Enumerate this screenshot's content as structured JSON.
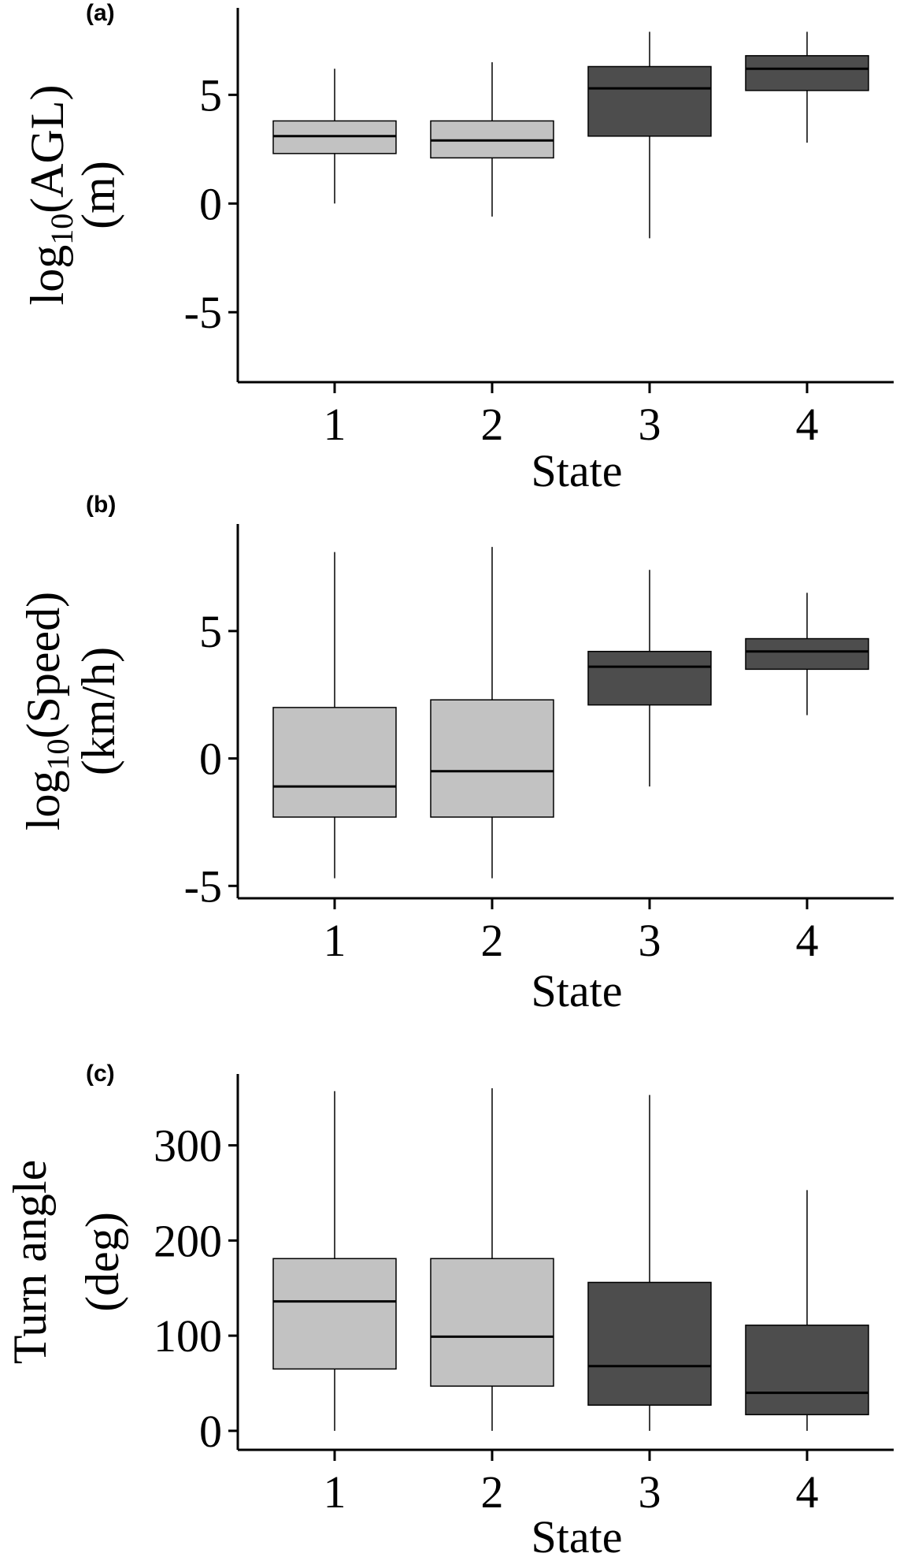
{
  "chart_data": [
    {
      "type": "boxplot",
      "panel_label": "(a)",
      "ylabel": {
        "main": "log",
        "sub": "10",
        "rest": "(AGL)",
        "line2": "(m)"
      },
      "xlabel": "State",
      "categories": [
        "1",
        "2",
        "3",
        "4"
      ],
      "yticks": [
        "5",
        "0",
        "-5"
      ],
      "ytick_values": [
        5,
        0,
        -5
      ],
      "ylim": [
        -8.0,
        9.0
      ],
      "colors": [
        "#c2c2c2",
        "#c2c2c2",
        "#4d4d4d",
        "#4d4d4d"
      ],
      "boxes": [
        {
          "min": 0.0,
          "q1": 2.3,
          "median": 3.1,
          "q3": 3.8,
          "max": 6.2
        },
        {
          "min": -0.6,
          "q1": 2.1,
          "median": 2.9,
          "q3": 3.8,
          "max": 6.5
        },
        {
          "min": -1.6,
          "q1": 3.1,
          "median": 5.3,
          "q3": 6.3,
          "max": 7.9
        },
        {
          "min": 2.8,
          "q1": 5.2,
          "median": 6.2,
          "q3": 6.8,
          "max": 7.9
        }
      ]
    },
    {
      "type": "boxplot",
      "panel_label": "(b)",
      "ylabel": {
        "main": "log",
        "sub": "10",
        "rest": "(Speed)",
        "line2": "(km/h)"
      },
      "xlabel": "State",
      "categories": [
        "1",
        "2",
        "3",
        "4"
      ],
      "yticks": [
        "5",
        "0",
        "-5"
      ],
      "ytick_values": [
        5,
        0,
        -5
      ],
      "ylim": [
        -5.3,
        9.2
      ],
      "colors": [
        "#c2c2c2",
        "#c2c2c2",
        "#4d4d4d",
        "#4d4d4d"
      ],
      "boxes": [
        {
          "min": -4.7,
          "q1": -2.3,
          "median": -1.1,
          "q3": 2.0,
          "max": 8.1
        },
        {
          "min": -4.7,
          "q1": -2.3,
          "median": -0.5,
          "q3": 2.3,
          "max": 8.3
        },
        {
          "min": -1.1,
          "q1": 2.1,
          "median": 3.6,
          "q3": 4.2,
          "max": 7.4
        },
        {
          "min": 1.7,
          "q1": 3.5,
          "median": 4.2,
          "q3": 4.7,
          "max": 6.5
        }
      ]
    },
    {
      "type": "boxplot",
      "panel_label": "(c)",
      "ylabel": {
        "main": "Turn angle",
        "sub": "",
        "rest": "",
        "line2": "(deg)"
      },
      "xlabel": "State",
      "categories": [
        "1",
        "2",
        "3",
        "4"
      ],
      "yticks": [
        "300",
        "200",
        "100",
        "0"
      ],
      "ytick_values": [
        300,
        200,
        100,
        0
      ],
      "ylim": [
        -15,
        375
      ],
      "colors": [
        "#c2c2c2",
        "#c2c2c2",
        "#4d4d4d",
        "#4d4d4d"
      ],
      "boxes": [
        {
          "min": 0,
          "q1": 65,
          "median": 136,
          "q3": 181,
          "max": 357
        },
        {
          "min": 0,
          "q1": 47,
          "median": 99,
          "q3": 181,
          "max": 360
        },
        {
          "min": 0,
          "q1": 27,
          "median": 68,
          "q3": 156,
          "max": 353
        },
        {
          "min": 0,
          "q1": 17,
          "median": 40,
          "q3": 111,
          "max": 253
        }
      ]
    }
  ]
}
